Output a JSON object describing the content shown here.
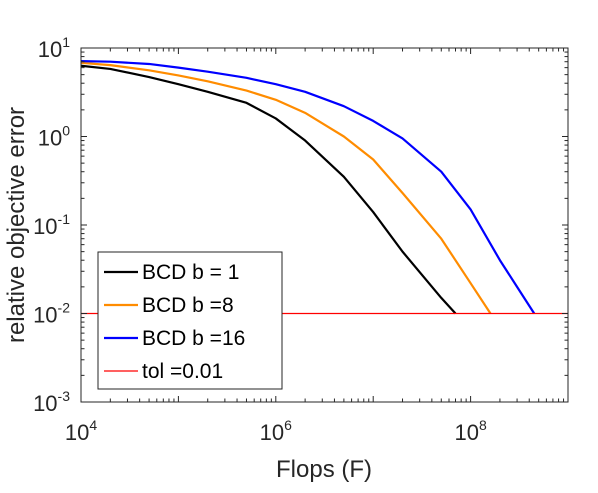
{
  "chart_data": {
    "type": "line",
    "xlabel": "Flops (F)",
    "ylabel": "relative objective error",
    "xscale": "log",
    "yscale": "log",
    "xlim": [
      10000,
      1000000000
    ],
    "ylim": [
      0.001,
      10
    ],
    "x_ticks": [
      {
        "base": "10",
        "exp": "4",
        "value": 10000
      },
      {
        "base": "10",
        "exp": "6",
        "value": 1000000
      },
      {
        "base": "10",
        "exp": "8",
        "value": 100000000
      }
    ],
    "y_ticks": [
      {
        "base": "10",
        "exp": "-3",
        "value": 0.001
      },
      {
        "base": "10",
        "exp": "-2",
        "value": 0.01
      },
      {
        "base": "10",
        "exp": "-1",
        "value": 0.1
      },
      {
        "base": "10",
        "exp": "0",
        "value": 1
      },
      {
        "base": "10",
        "exp": "1",
        "value": 10
      }
    ],
    "grid": false,
    "legend_position": "bottom-left",
    "series": [
      {
        "name": "BCD b = 1",
        "color": "#000000",
        "x": [
          10000,
          20000,
          50000,
          100000,
          200000,
          500000,
          1000000,
          2000000,
          5000000,
          10000000,
          20000000,
          50000000,
          70000000
        ],
        "y": [
          6.3,
          5.8,
          4.7,
          3.9,
          3.2,
          2.4,
          1.6,
          0.9,
          0.35,
          0.14,
          0.05,
          0.015,
          0.01
        ]
      },
      {
        "name": "BCD b =8",
        "color": "#ff8c00",
        "x": [
          10000,
          20000,
          50000,
          100000,
          200000,
          500000,
          1000000,
          2000000,
          5000000,
          10000000,
          20000000,
          50000000,
          100000000,
          160000000
        ],
        "y": [
          6.8,
          6.4,
          5.6,
          4.9,
          4.2,
          3.3,
          2.6,
          1.85,
          1.0,
          0.55,
          0.23,
          0.07,
          0.022,
          0.01
        ]
      },
      {
        "name": "BCD b =16",
        "color": "#0000ff",
        "x": [
          10000,
          20000,
          50000,
          100000,
          200000,
          500000,
          1000000,
          2000000,
          5000000,
          10000000,
          20000000,
          50000000,
          100000000,
          200000000,
          300000000,
          450000000
        ],
        "y": [
          7.1,
          7.0,
          6.6,
          6.0,
          5.4,
          4.6,
          3.9,
          3.2,
          2.2,
          1.5,
          0.95,
          0.4,
          0.15,
          0.04,
          0.02,
          0.01
        ]
      },
      {
        "name": "tol =0.01",
        "color": "#ff0000",
        "x": [
          10000,
          1000000000
        ],
        "y": [
          0.01,
          0.01
        ]
      }
    ]
  }
}
